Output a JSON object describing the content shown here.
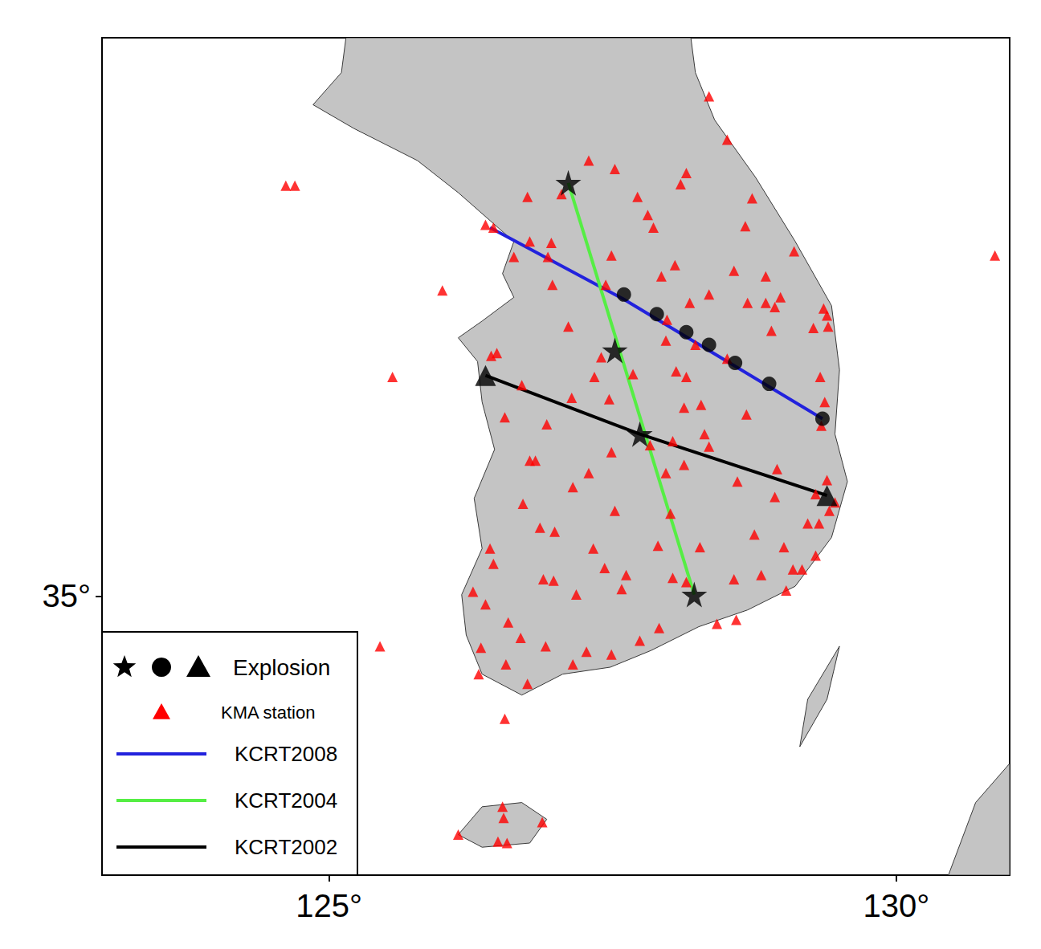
{
  "chart_data": {
    "type": "map",
    "xlim": [
      123,
      131
    ],
    "ylim": [
      33,
      39
    ],
    "xticks": [
      {
        "value": 125,
        "label": "125°"
      },
      {
        "value": 130,
        "label": "130°"
      }
    ],
    "yticks": [
      {
        "value": 35,
        "label": "35°"
      }
    ],
    "legend": "lower left",
    "land": [
      [
        [
          125.15,
          39.0
        ],
        [
          125.11,
          38.75
        ],
        [
          124.86,
          38.52
        ],
        [
          125.22,
          38.35
        ],
        [
          125.78,
          38.12
        ],
        [
          126.14,
          37.89
        ],
        [
          126.42,
          37.69
        ],
        [
          126.63,
          37.54
        ],
        [
          126.53,
          37.31
        ],
        [
          126.63,
          37.14
        ],
        [
          126.35,
          36.97
        ],
        [
          126.14,
          36.85
        ],
        [
          126.31,
          36.68
        ],
        [
          126.35,
          36.39
        ],
        [
          126.46,
          36.05
        ],
        [
          126.28,
          35.7
        ],
        [
          126.35,
          35.34
        ],
        [
          126.17,
          35.01
        ],
        [
          126.21,
          34.72
        ],
        [
          126.35,
          34.44
        ],
        [
          126.7,
          34.29
        ],
        [
          127.06,
          34.44
        ],
        [
          127.48,
          34.49
        ],
        [
          127.84,
          34.61
        ],
        [
          128.26,
          34.78
        ],
        [
          128.69,
          34.9
        ],
        [
          129.11,
          35.07
        ],
        [
          129.43,
          35.42
        ],
        [
          129.57,
          35.82
        ],
        [
          129.46,
          36.16
        ],
        [
          129.5,
          36.62
        ],
        [
          129.43,
          37.08
        ],
        [
          129.11,
          37.54
        ],
        [
          128.76,
          38.0
        ],
        [
          128.4,
          38.41
        ],
        [
          128.23,
          38.75
        ],
        [
          128.19,
          39.0
        ]
      ],
      [
        [
          126.14,
          33.29
        ],
        [
          126.35,
          33.49
        ],
        [
          126.7,
          33.52
        ],
        [
          126.92,
          33.4
        ],
        [
          126.77,
          33.23
        ],
        [
          126.35,
          33.2
        ]
      ],
      [
        [
          129.5,
          34.64
        ],
        [
          129.39,
          34.26
        ],
        [
          129.15,
          33.92
        ],
        [
          129.22,
          34.26
        ]
      ],
      [
        [
          130.46,
          33.0
        ],
        [
          130.7,
          33.52
        ],
        [
          131.0,
          33.8
        ],
        [
          131.0,
          33.0
        ]
      ]
    ],
    "profiles": [
      {
        "name": "KCRT2008",
        "color": "#2222dd",
        "points": [
          [
            126.42,
            37.64
          ],
          [
            127.59,
            37.13
          ],
          [
            129.35,
            36.27
          ]
        ]
      },
      {
        "name": "KCRT2004",
        "color": "#55ee44",
        "points": [
          [
            127.11,
            37.96
          ],
          [
            128.22,
            35.01
          ]
        ]
      },
      {
        "name": "KCRT2002",
        "color": "#000000",
        "points": [
          [
            126.38,
            36.58
          ],
          [
            127.74,
            36.16
          ],
          [
            129.39,
            35.72
          ]
        ]
      }
    ],
    "stations": {
      "name": "KMA station",
      "color": "#ff0000",
      "marker": "triangle",
      "points": [
        [
          128.35,
          38.58
        ],
        [
          128.51,
          38.27
        ],
        [
          127.29,
          38.12
        ],
        [
          127.52,
          38.06
        ],
        [
          128.15,
          38.03
        ],
        [
          128.1,
          37.95
        ],
        [
          127.05,
          37.88
        ],
        [
          126.75,
          37.86
        ],
        [
          127.72,
          37.86
        ],
        [
          128.73,
          37.85
        ],
        [
          127.81,
          37.73
        ],
        [
          126.38,
          37.66
        ],
        [
          126.45,
          37.64
        ],
        [
          128.67,
          37.65
        ],
        [
          127.86,
          37.64
        ],
        [
          126.77,
          37.54
        ],
        [
          126.96,
          37.53
        ],
        [
          129.1,
          37.47
        ],
        [
          130.87,
          37.44
        ],
        [
          126.63,
          37.43
        ],
        [
          127.49,
          37.44
        ],
        [
          126.93,
          37.43
        ],
        [
          128.05,
          37.37
        ],
        [
          127.93,
          37.29
        ],
        [
          128.57,
          37.33
        ],
        [
          128.85,
          37.29
        ],
        [
          128.35,
          37.16
        ],
        [
          128.98,
          37.14
        ],
        [
          126.97,
          37.23
        ],
        [
          128.18,
          37.1
        ],
        [
          127.44,
          37.23
        ],
        [
          129.36,
          37.06
        ],
        [
          129.39,
          37.01
        ],
        [
          128.93,
          37.07
        ],
        [
          128.85,
          37.1
        ],
        [
          128.69,
          37.1
        ],
        [
          129.4,
          36.93
        ],
        [
          129.27,
          36.92
        ],
        [
          128.9,
          36.9
        ],
        [
          127.11,
          36.93
        ],
        [
          126.0,
          37.19
        ],
        [
          127.98,
          36.98
        ],
        [
          127.97,
          36.83
        ],
        [
          128.23,
          36.8
        ],
        [
          126.48,
          36.74
        ],
        [
          126.43,
          36.72
        ],
        [
          127.4,
          36.71
        ],
        [
          128.51,
          36.7
        ],
        [
          125.56,
          36.57
        ],
        [
          127.34,
          36.57
        ],
        [
          127.68,
          36.59
        ],
        [
          128.06,
          36.61
        ],
        [
          128.15,
          36.57
        ],
        [
          129.33,
          36.57
        ],
        [
          126.7,
          36.51
        ],
        [
          127.14,
          36.42
        ],
        [
          128.13,
          36.35
        ],
        [
          128.28,
          36.37
        ],
        [
          127.47,
          36.41
        ],
        [
          128.68,
          36.3
        ],
        [
          129.37,
          36.39
        ],
        [
          129.34,
          36.22
        ],
        [
          126.55,
          36.28
        ],
        [
          126.92,
          36.23
        ],
        [
          128.31,
          36.16
        ],
        [
          128.03,
          36.11
        ],
        [
          128.35,
          36.07
        ],
        [
          127.83,
          36.08
        ],
        [
          126.82,
          35.97
        ],
        [
          126.77,
          35.97
        ],
        [
          127.49,
          36.03
        ],
        [
          127.97,
          35.88
        ],
        [
          128.13,
          35.94
        ],
        [
          128.6,
          35.82
        ],
        [
          128.95,
          35.91
        ],
        [
          129.39,
          35.83
        ],
        [
          129.46,
          35.67
        ],
        [
          129.41,
          35.61
        ],
        [
          129.29,
          35.73
        ],
        [
          127.15,
          35.78
        ],
        [
          126.71,
          35.66
        ],
        [
          127.29,
          35.88
        ],
        [
          128.93,
          35.71
        ],
        [
          126.86,
          35.49
        ],
        [
          127.52,
          35.61
        ],
        [
          128.01,
          35.59
        ],
        [
          129.22,
          35.52
        ],
        [
          129.32,
          35.52
        ],
        [
          128.75,
          35.44
        ],
        [
          126.42,
          35.34
        ],
        [
          127.33,
          35.34
        ],
        [
          127.9,
          35.36
        ],
        [
          128.27,
          35.35
        ],
        [
          129.01,
          35.35
        ],
        [
          126.45,
          35.23
        ],
        [
          126.99,
          35.46
        ],
        [
          129.29,
          35.29
        ],
        [
          126.89,
          35.12
        ],
        [
          126.98,
          35.11
        ],
        [
          127.43,
          35.2
        ],
        [
          127.62,
          35.15
        ],
        [
          127.58,
          35.05
        ],
        [
          128.15,
          35.1
        ],
        [
          128.03,
          35.13
        ],
        [
          128.57,
          35.12
        ],
        [
          128.81,
          35.15
        ],
        [
          129.09,
          35.19
        ],
        [
          129.17,
          35.19
        ],
        [
          126.27,
          35.03
        ],
        [
          126.38,
          34.94
        ],
        [
          126.58,
          34.81
        ],
        [
          127.18,
          35.01
        ],
        [
          129.03,
          35.04
        ],
        [
          126.91,
          34.64
        ],
        [
          127.27,
          34.6
        ],
        [
          127.74,
          34.68
        ],
        [
          127.91,
          34.77
        ],
        [
          128.42,
          34.8
        ],
        [
          128.59,
          34.83
        ],
        [
          126.34,
          34.63
        ],
        [
          126.69,
          34.7
        ],
        [
          125.45,
          34.64
        ],
        [
          126.56,
          34.51
        ],
        [
          127.15,
          34.51
        ],
        [
          127.49,
          34.58
        ],
        [
          126.32,
          34.44
        ],
        [
          126.75,
          34.37
        ],
        [
          126.55,
          34.12
        ],
        [
          126.14,
          33.29
        ],
        [
          126.53,
          33.49
        ],
        [
          126.54,
          33.41
        ],
        [
          126.88,
          33.38
        ],
        [
          126.49,
          33.24
        ],
        [
          126.57,
          33.23
        ],
        [
          124.62,
          37.94
        ],
        [
          124.7,
          37.94
        ]
      ]
    },
    "explosions": {
      "name": "Explosion",
      "color": "#000000",
      "groups": [
        {
          "marker": "star",
          "points": [
            [
              127.11,
              37.96
            ],
            [
              127.52,
              36.76
            ],
            [
              127.74,
              36.16
            ],
            [
              128.22,
              35.01
            ]
          ]
        },
        {
          "marker": "circle",
          "points": [
            [
              127.6,
              37.16
            ],
            [
              127.89,
              37.02
            ],
            [
              128.15,
              36.89
            ],
            [
              128.35,
              36.8
            ],
            [
              128.58,
              36.67
            ],
            [
              128.88,
              36.52
            ],
            [
              129.35,
              36.27
            ]
          ]
        },
        {
          "marker": "triangle",
          "points": [
            [
              126.38,
              36.58
            ],
            [
              129.39,
              35.72
            ]
          ]
        }
      ]
    }
  }
}
